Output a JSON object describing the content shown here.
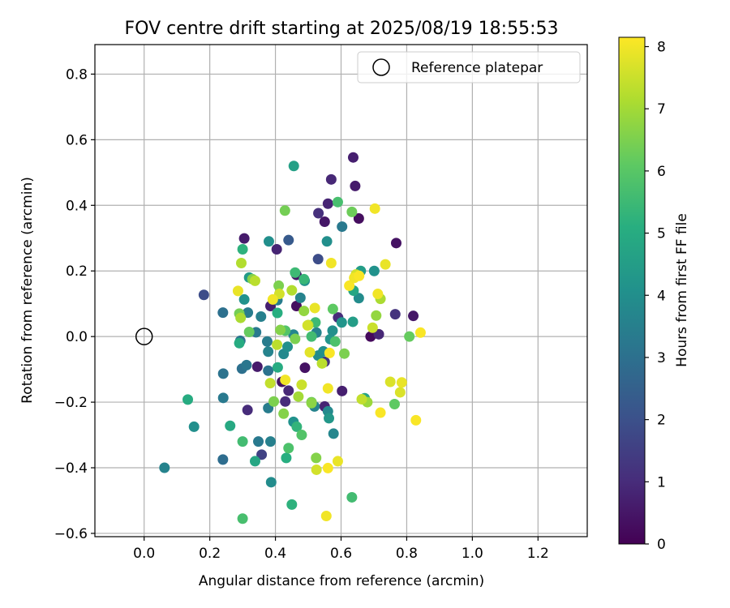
{
  "chart_data": {
    "type": "scatter",
    "title": "FOV centre drift starting at 2025/08/19 18:55:53",
    "xlabel": "Angular distance from reference (arcmin)",
    "ylabel": "Rotation from reference (arcmin)",
    "xlim": [
      -0.15,
      1.35
    ],
    "ylim": [
      -0.61,
      0.89
    ],
    "xticks": [
      0.0,
      0.2,
      0.4,
      0.6,
      0.8,
      1.0,
      1.2
    ],
    "xtick_labels": [
      "0.0",
      "0.2",
      "0.4",
      "0.6",
      "0.8",
      "1.0",
      "1.2"
    ],
    "yticks": [
      -0.6,
      -0.4,
      -0.2,
      0.0,
      0.2,
      0.4,
      0.6,
      0.8
    ],
    "ytick_labels": [
      "−0.6",
      "−0.4",
      "−0.2",
      "0.0",
      "0.2",
      "0.4",
      "0.6",
      "0.8"
    ],
    "grid": true,
    "legend": {
      "position": "top-right",
      "label": "Reference platepar"
    },
    "reference_point": {
      "x": 0.0,
      "y": 0.0
    },
    "colorbar": {
      "label": "Hours from first FF file",
      "range": [
        0,
        8.15
      ],
      "ticks": [
        0,
        1,
        2,
        3,
        4,
        5,
        6,
        7,
        8
      ],
      "tick_labels": [
        "0",
        "1",
        "2",
        "3",
        "4",
        "5",
        "6",
        "7",
        "8"
      ],
      "colormap": "viridis"
    },
    "points": [
      {
        "x": 0.637,
        "y": 0.546,
        "t": 0.7
      },
      {
        "x": 0.57,
        "y": 0.479,
        "t": 0.9
      },
      {
        "x": 0.643,
        "y": 0.459,
        "t": 0.6
      },
      {
        "x": 0.56,
        "y": 0.405,
        "t": 0.8
      },
      {
        "x": 0.531,
        "y": 0.376,
        "t": 1.1
      },
      {
        "x": 0.55,
        "y": 0.35,
        "t": 0.5
      },
      {
        "x": 0.654,
        "y": 0.36,
        "t": 0.3
      },
      {
        "x": 0.603,
        "y": 0.335,
        "t": 3.3
      },
      {
        "x": 0.768,
        "y": 0.285,
        "t": 0.4
      },
      {
        "x": 0.305,
        "y": 0.299,
        "t": 0.6
      },
      {
        "x": 0.44,
        "y": 0.294,
        "t": 2.3
      },
      {
        "x": 0.404,
        "y": 0.266,
        "t": 0.8
      },
      {
        "x": 0.53,
        "y": 0.236,
        "t": 1.9
      },
      {
        "x": 0.464,
        "y": 0.188,
        "t": 0.5
      },
      {
        "x": 0.182,
        "y": 0.127,
        "t": 1.9
      },
      {
        "x": 0.385,
        "y": 0.093,
        "t": 0.7
      },
      {
        "x": 0.464,
        "y": 0.093,
        "t": 0.3
      },
      {
        "x": 0.591,
        "y": 0.058,
        "t": 1.0
      },
      {
        "x": 0.765,
        "y": 0.068,
        "t": 1.2
      },
      {
        "x": 0.82,
        "y": 0.063,
        "t": 0.5
      },
      {
        "x": 0.69,
        "y": 0.0,
        "t": 0.2
      },
      {
        "x": 0.715,
        "y": 0.007,
        "t": 0.9
      },
      {
        "x": 0.42,
        "y": -0.138,
        "t": 0.4
      },
      {
        "x": 0.49,
        "y": -0.095,
        "t": 0.4
      },
      {
        "x": 0.44,
        "y": -0.165,
        "t": 0.9
      },
      {
        "x": 0.43,
        "y": -0.198,
        "t": 1.0
      },
      {
        "x": 0.55,
        "y": -0.213,
        "t": 0.8
      },
      {
        "x": 0.603,
        "y": -0.166,
        "t": 0.7
      },
      {
        "x": 0.315,
        "y": -0.224,
        "t": 1.0
      },
      {
        "x": 0.55,
        "y": -0.077,
        "t": 1.2
      },
      {
        "x": 0.345,
        "y": -0.092,
        "t": 0.6
      },
      {
        "x": 0.358,
        "y": -0.36,
        "t": 1.6
      },
      {
        "x": 0.24,
        "y": -0.375,
        "t": 2.9
      },
      {
        "x": 0.348,
        "y": -0.32,
        "t": 3.3
      },
      {
        "x": 0.385,
        "y": -0.32,
        "t": 3.5
      },
      {
        "x": 0.387,
        "y": -0.444,
        "t": 3.9
      },
      {
        "x": 0.062,
        "y": -0.4,
        "t": 3.6
      },
      {
        "x": 0.152,
        "y": -0.275,
        "t": 4.0
      },
      {
        "x": 0.241,
        "y": -0.187,
        "t": 3.3
      },
      {
        "x": 0.241,
        "y": -0.113,
        "t": 3.1
      },
      {
        "x": 0.298,
        "y": -0.098,
        "t": 3.0
      },
      {
        "x": 0.312,
        "y": -0.087,
        "t": 3.2
      },
      {
        "x": 0.378,
        "y": -0.104,
        "t": 3.1
      },
      {
        "x": 0.378,
        "y": -0.218,
        "t": 3.4
      },
      {
        "x": 0.455,
        "y": -0.26,
        "t": 4.1
      },
      {
        "x": 0.519,
        "y": -0.213,
        "t": 3.6
      },
      {
        "x": 0.56,
        "y": -0.228,
        "t": 3.8
      },
      {
        "x": 0.563,
        "y": -0.249,
        "t": 4.3
      },
      {
        "x": 0.577,
        "y": -0.296,
        "t": 3.7
      },
      {
        "x": 0.24,
        "y": 0.073,
        "t": 3.0
      },
      {
        "x": 0.293,
        "y": -0.013,
        "t": 3.1
      },
      {
        "x": 0.316,
        "y": 0.073,
        "t": 3.4
      },
      {
        "x": 0.341,
        "y": 0.013,
        "t": 3.3
      },
      {
        "x": 0.356,
        "y": 0.061,
        "t": 3.5
      },
      {
        "x": 0.375,
        "y": -0.015,
        "t": 3.4
      },
      {
        "x": 0.378,
        "y": -0.046,
        "t": 3.6
      },
      {
        "x": 0.406,
        "y": 0.111,
        "t": 3.4
      },
      {
        "x": 0.425,
        "y": -0.053,
        "t": 3.8
      },
      {
        "x": 0.437,
        "y": -0.031,
        "t": 4.0
      },
      {
        "x": 0.455,
        "y": 0.006,
        "t": 3.7
      },
      {
        "x": 0.476,
        "y": 0.118,
        "t": 3.6
      },
      {
        "x": 0.489,
        "y": 0.17,
        "t": 4.1
      },
      {
        "x": 0.525,
        "y": 0.012,
        "t": 3.6
      },
      {
        "x": 0.53,
        "y": -0.058,
        "t": 3.9
      },
      {
        "x": 0.546,
        "y": -0.045,
        "t": 4.0
      },
      {
        "x": 0.567,
        "y": -0.008,
        "t": 4.2
      },
      {
        "x": 0.574,
        "y": 0.018,
        "t": 4.0
      },
      {
        "x": 0.602,
        "y": 0.043,
        "t": 4.2
      },
      {
        "x": 0.636,
        "y": 0.045,
        "t": 4.5
      },
      {
        "x": 0.654,
        "y": 0.117,
        "t": 3.9
      },
      {
        "x": 0.66,
        "y": 0.2,
        "t": 4.5
      },
      {
        "x": 0.701,
        "y": 0.2,
        "t": 4.1
      },
      {
        "x": 0.305,
        "y": 0.113,
        "t": 4.1
      },
      {
        "x": 0.32,
        "y": 0.18,
        "t": 4.4
      },
      {
        "x": 0.38,
        "y": 0.29,
        "t": 4.0
      },
      {
        "x": 0.557,
        "y": 0.29,
        "t": 4.0
      },
      {
        "x": 0.456,
        "y": 0.52,
        "t": 4.6
      },
      {
        "x": 0.638,
        "y": 0.14,
        "t": 4.8
      },
      {
        "x": 0.672,
        "y": -0.188,
        "t": 4.7
      },
      {
        "x": 0.133,
        "y": -0.192,
        "t": 5.0
      },
      {
        "x": 0.262,
        "y": -0.272,
        "t": 4.9
      },
      {
        "x": 0.29,
        "y": -0.02,
        "t": 5.0
      },
      {
        "x": 0.3,
        "y": 0.266,
        "t": 5.2
      },
      {
        "x": 0.338,
        "y": -0.38,
        "t": 4.8
      },
      {
        "x": 0.406,
        "y": 0.072,
        "t": 5.1
      },
      {
        "x": 0.407,
        "y": -0.094,
        "t": 5.0
      },
      {
        "x": 0.433,
        "y": -0.37,
        "t": 5.1
      },
      {
        "x": 0.45,
        "y": -0.512,
        "t": 5.2
      },
      {
        "x": 0.465,
        "y": -0.275,
        "t": 5.3
      },
      {
        "x": 0.487,
        "y": 0.175,
        "t": 5.4
      },
      {
        "x": 0.51,
        "y": 0.0,
        "t": 5.6
      },
      {
        "x": 0.522,
        "y": 0.043,
        "t": 5.5
      },
      {
        "x": 0.59,
        "y": 0.41,
        "t": 5.7
      },
      {
        "x": 0.633,
        "y": -0.49,
        "t": 5.6
      },
      {
        "x": 0.3,
        "y": -0.555,
        "t": 5.7
      },
      {
        "x": 0.3,
        "y": -0.32,
        "t": 5.6
      },
      {
        "x": 0.43,
        "y": 0.018,
        "t": 5.9
      },
      {
        "x": 0.44,
        "y": -0.34,
        "t": 5.8
      },
      {
        "x": 0.46,
        "y": 0.195,
        "t": 5.5
      },
      {
        "x": 0.48,
        "y": -0.3,
        "t": 5.9
      },
      {
        "x": 0.51,
        "y": -0.2,
        "t": 6.3
      },
      {
        "x": 0.582,
        "y": -0.015,
        "t": 5.8
      },
      {
        "x": 0.575,
        "y": 0.084,
        "t": 6.1
      },
      {
        "x": 0.61,
        "y": -0.052,
        "t": 6.5
      },
      {
        "x": 0.633,
        "y": 0.38,
        "t": 6.3
      },
      {
        "x": 0.29,
        "y": 0.07,
        "t": 6.4
      },
      {
        "x": 0.32,
        "y": 0.014,
        "t": 6.2
      },
      {
        "x": 0.33,
        "y": 0.175,
        "t": 6.6
      },
      {
        "x": 0.395,
        "y": -0.198,
        "t": 6.5
      },
      {
        "x": 0.41,
        "y": 0.155,
        "t": 6.5
      },
      {
        "x": 0.415,
        "y": 0.02,
        "t": 6.6
      },
      {
        "x": 0.425,
        "y": -0.235,
        "t": 6.6
      },
      {
        "x": 0.429,
        "y": 0.384,
        "t": 6.4
      },
      {
        "x": 0.46,
        "y": -0.007,
        "t": 6.5
      },
      {
        "x": 0.47,
        "y": -0.183,
        "t": 7.0
      },
      {
        "x": 0.487,
        "y": 0.078,
        "t": 6.8
      },
      {
        "x": 0.5,
        "y": 0.035,
        "t": 7.0
      },
      {
        "x": 0.51,
        "y": -0.203,
        "t": 6.7
      },
      {
        "x": 0.524,
        "y": -0.37,
        "t": 6.6
      },
      {
        "x": 0.68,
        "y": -0.2,
        "t": 6.9
      },
      {
        "x": 0.707,
        "y": 0.064,
        "t": 6.8
      },
      {
        "x": 0.72,
        "y": 0.115,
        "t": 7.1
      },
      {
        "x": 0.763,
        "y": -0.206,
        "t": 6.1
      },
      {
        "x": 0.808,
        "y": 0.0,
        "t": 6.2
      },
      {
        "x": 0.294,
        "y": 0.057,
        "t": 7.1
      },
      {
        "x": 0.296,
        "y": 0.224,
        "t": 7.2
      },
      {
        "x": 0.338,
        "y": 0.17,
        "t": 7.3
      },
      {
        "x": 0.384,
        "y": -0.142,
        "t": 7.4
      },
      {
        "x": 0.405,
        "y": -0.025,
        "t": 7.3
      },
      {
        "x": 0.412,
        "y": 0.13,
        "t": 7.6
      },
      {
        "x": 0.45,
        "y": 0.141,
        "t": 7.2
      },
      {
        "x": 0.48,
        "y": -0.147,
        "t": 7.5
      },
      {
        "x": 0.498,
        "y": 0.034,
        "t": 7.6
      },
      {
        "x": 0.505,
        "y": -0.048,
        "t": 7.8
      },
      {
        "x": 0.525,
        "y": -0.406,
        "t": 7.6
      },
      {
        "x": 0.542,
        "y": -0.082,
        "t": 7.3
      },
      {
        "x": 0.645,
        "y": 0.189,
        "t": 7.6
      },
      {
        "x": 0.663,
        "y": -0.191,
        "t": 7.4
      },
      {
        "x": 0.696,
        "y": 0.027,
        "t": 7.5
      },
      {
        "x": 0.75,
        "y": -0.138,
        "t": 7.7
      },
      {
        "x": 0.78,
        "y": -0.17,
        "t": 7.7
      },
      {
        "x": 0.286,
        "y": 0.139,
        "t": 7.9
      },
      {
        "x": 0.392,
        "y": 0.113,
        "t": 8.0
      },
      {
        "x": 0.43,
        "y": -0.132,
        "t": 8.0
      },
      {
        "x": 0.52,
        "y": 0.087,
        "t": 7.9
      },
      {
        "x": 0.555,
        "y": -0.547,
        "t": 8.0
      },
      {
        "x": 0.56,
        "y": -0.401,
        "t": 8.1
      },
      {
        "x": 0.56,
        "y": -0.158,
        "t": 8.0
      },
      {
        "x": 0.565,
        "y": -0.05,
        "t": 8.1
      },
      {
        "x": 0.57,
        "y": 0.224,
        "t": 8.0
      },
      {
        "x": 0.59,
        "y": -0.38,
        "t": 7.9
      },
      {
        "x": 0.625,
        "y": 0.155,
        "t": 8.1
      },
      {
        "x": 0.64,
        "y": 0.179,
        "t": 8.0
      },
      {
        "x": 0.655,
        "y": 0.185,
        "t": 8.1
      },
      {
        "x": 0.703,
        "y": 0.39,
        "t": 8.0
      },
      {
        "x": 0.712,
        "y": 0.13,
        "t": 8.0
      },
      {
        "x": 0.72,
        "y": -0.232,
        "t": 8.1
      },
      {
        "x": 0.735,
        "y": 0.22,
        "t": 7.9
      },
      {
        "x": 0.785,
        "y": -0.14,
        "t": 7.9
      },
      {
        "x": 0.828,
        "y": -0.255,
        "t": 8.1
      },
      {
        "x": 0.842,
        "y": 0.012,
        "t": 8.1
      }
    ]
  }
}
